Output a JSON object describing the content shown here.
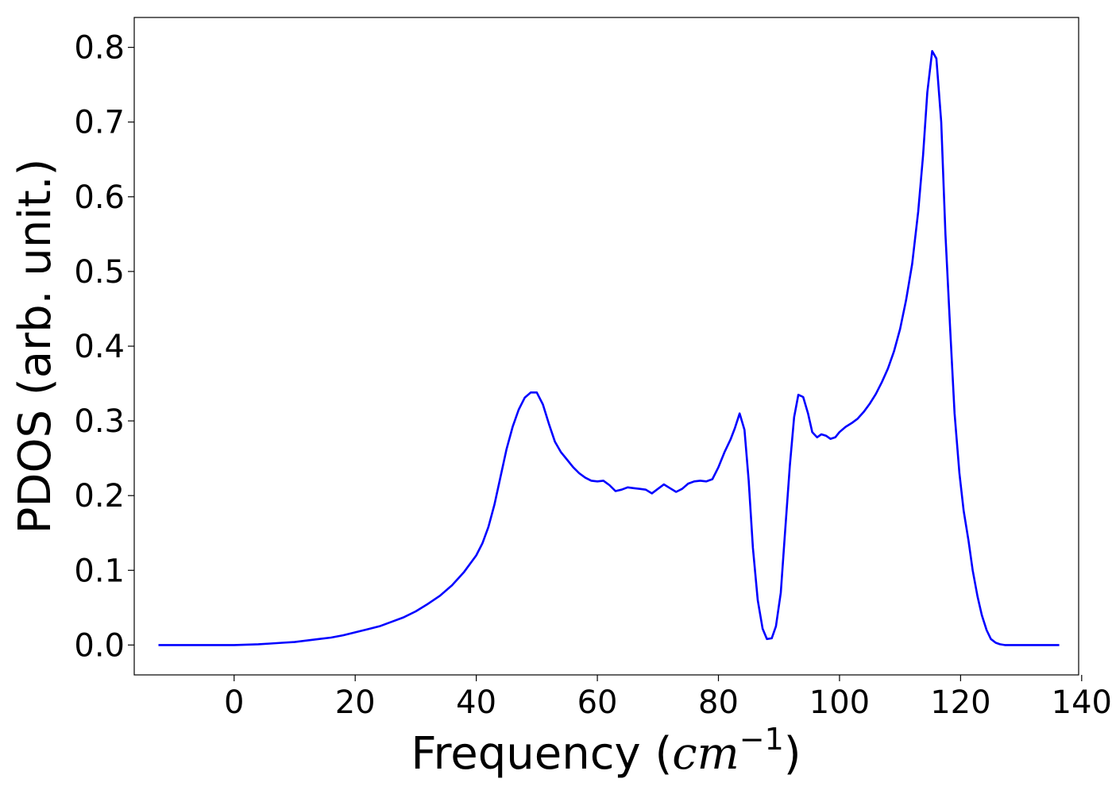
{
  "chart_data": {
    "type": "line",
    "title": "",
    "xlabel": "Frequency (",
    "xlabel_unit_base": "cm",
    "xlabel_unit_exp": "−1",
    "xlabel_close": ")",
    "ylabel": "PDOS (arb. unit.)",
    "xlim": [
      -16.5,
      139.5
    ],
    "ylim": [
      -0.04,
      0.84
    ],
    "xticks": [
      0,
      20,
      40,
      60,
      80,
      100,
      120,
      140
    ],
    "xtick_labels": [
      "0",
      "20",
      "40",
      "60",
      "80",
      "100",
      "120",
      "140"
    ],
    "yticks": [
      0.0,
      0.1,
      0.2,
      0.3,
      0.4,
      0.5,
      0.6,
      0.7,
      0.8
    ],
    "ytick_labels": [
      "0.0",
      "0.1",
      "0.2",
      "0.3",
      "0.4",
      "0.5",
      "0.6",
      "0.7",
      "0.8"
    ],
    "grid": false,
    "line_color": "#0000ff",
    "series": [
      {
        "x": [
          -12.5,
          -5,
          0,
          4,
          6,
          8,
          10,
          12,
          14,
          16,
          18,
          20,
          22,
          24,
          26,
          28,
          30,
          32,
          34,
          36,
          38,
          40,
          41,
          42,
          43,
          44,
          45,
          46,
          47,
          48,
          49,
          50,
          51,
          52,
          53,
          54,
          55,
          56,
          57,
          58,
          59,
          60,
          61,
          62,
          63,
          64,
          65,
          66,
          67,
          68,
          69,
          70,
          71,
          72,
          73,
          74,
          75,
          76,
          77,
          78,
          79,
          80,
          81,
          82,
          82.7,
          83.5,
          84.3,
          85.0,
          85.7,
          86.5,
          87.3,
          88.0,
          88.8,
          89.5,
          90.3,
          91.0,
          91.8,
          92.5,
          93.2,
          94.0,
          94.8,
          95.5,
          96.3,
          97.0,
          97.8,
          98.5,
          99.3,
          100.0,
          101,
          102,
          103,
          104,
          105,
          106,
          107,
          108,
          109,
          110,
          111,
          112,
          113,
          113.8,
          114.5,
          115.3,
          116.0,
          116.8,
          117.5,
          118.3,
          119.0,
          119.8,
          120.5,
          121.3,
          122.0,
          122.8,
          123.5,
          124.3,
          125.0,
          125.8,
          126.5,
          127.3,
          128,
          130,
          136.3
        ],
        "y": [
          0.0,
          0.0,
          0.0,
          0.001,
          0.002,
          0.003,
          0.004,
          0.006,
          0.008,
          0.01,
          0.013,
          0.017,
          0.021,
          0.025,
          0.031,
          0.037,
          0.045,
          0.055,
          0.066,
          0.08,
          0.098,
          0.12,
          0.136,
          0.158,
          0.188,
          0.225,
          0.262,
          0.292,
          0.315,
          0.331,
          0.338,
          0.338,
          0.322,
          0.296,
          0.272,
          0.258,
          0.248,
          0.238,
          0.23,
          0.224,
          0.22,
          0.219,
          0.22,
          0.214,
          0.206,
          0.208,
          0.211,
          0.21,
          0.209,
          0.208,
          0.203,
          0.209,
          0.215,
          0.21,
          0.205,
          0.209,
          0.216,
          0.219,
          0.22,
          0.219,
          0.222,
          0.238,
          0.258,
          0.275,
          0.29,
          0.31,
          0.288,
          0.22,
          0.13,
          0.06,
          0.022,
          0.008,
          0.009,
          0.025,
          0.07,
          0.15,
          0.24,
          0.305,
          0.335,
          0.332,
          0.31,
          0.285,
          0.278,
          0.282,
          0.28,
          0.276,
          0.278,
          0.285,
          0.292,
          0.297,
          0.303,
          0.312,
          0.323,
          0.336,
          0.352,
          0.37,
          0.393,
          0.423,
          0.462,
          0.51,
          0.58,
          0.655,
          0.74,
          0.795,
          0.785,
          0.7,
          0.55,
          0.42,
          0.31,
          0.23,
          0.18,
          0.14,
          0.1,
          0.065,
          0.04,
          0.02,
          0.008,
          0.003,
          0.001,
          0.0,
          0.0,
          0.0,
          0.0
        ]
      }
    ]
  }
}
